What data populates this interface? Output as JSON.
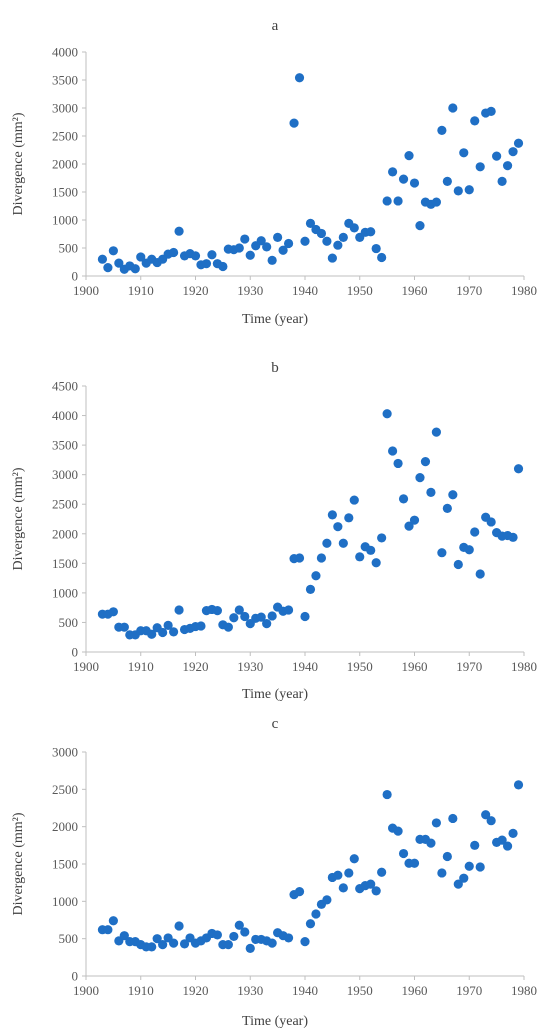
{
  "chart_data": [
    {
      "type": "scatter",
      "title": "a",
      "xlabel": "Time (year)",
      "ylabel": "Divergence (mm²)",
      "xlim": [
        1900,
        1980
      ],
      "ylim": [
        0,
        4000
      ],
      "xticks": [
        1900,
        1910,
        1920,
        1930,
        1940,
        1950,
        1960,
        1970,
        1980
      ],
      "yticks": [
        0,
        500,
        1000,
        1500,
        2000,
        2500,
        3000,
        3500,
        4000
      ],
      "grid": false,
      "legend": "none",
      "color": "#1f6fc5",
      "x": [
        1903,
        1904,
        1905,
        1906,
        1907,
        1908,
        1909,
        1910,
        1911,
        1912,
        1913,
        1914,
        1915,
        1916,
        1917,
        1918,
        1919,
        1920,
        1921,
        1922,
        1923,
        1924,
        1925,
        1926,
        1927,
        1928,
        1929,
        1930,
        1931,
        1932,
        1933,
        1934,
        1935,
        1936,
        1937,
        1938,
        1939,
        1940,
        1941,
        1942,
        1943,
        1944,
        1945,
        1946,
        1947,
        1948,
        1949,
        1950,
        1951,
        1952,
        1953,
        1954,
        1955,
        1956,
        1957,
        1958,
        1959,
        1960,
        1961,
        1962,
        1963,
        1964,
        1965,
        1966,
        1967,
        1968,
        1969,
        1970,
        1971,
        1972,
        1973,
        1974,
        1975,
        1976,
        1977,
        1978,
        1979
      ],
      "y": [
        300,
        150,
        450,
        230,
        120,
        180,
        130,
        340,
        230,
        300,
        240,
        300,
        390,
        420,
        800,
        360,
        400,
        360,
        200,
        220,
        380,
        220,
        170,
        480,
        470,
        500,
        660,
        370,
        540,
        630,
        520,
        280,
        690,
        460,
        580,
        2730,
        3540,
        620,
        940,
        830,
        760,
        620,
        320,
        550,
        690,
        940,
        860,
        690,
        780,
        790,
        490,
        330,
        1340,
        1860,
        1340,
        1730,
        2150,
        1660,
        900,
        1320,
        1280,
        1320,
        2600,
        1690,
        3000,
        1520,
        2200,
        1540,
        2770,
        1950,
        2910,
        2940,
        2140,
        1690,
        1970,
        2220,
        2370
      ]
    },
    {
      "type": "scatter",
      "title": "b",
      "xlabel": "Time (year)",
      "ylabel": "Divergence (mm²)",
      "xlim": [
        1900,
        1980
      ],
      "ylim": [
        0,
        4500
      ],
      "xticks": [
        1900,
        1910,
        1920,
        1930,
        1940,
        1950,
        1960,
        1970,
        1980
      ],
      "yticks": [
        0,
        500,
        1000,
        1500,
        2000,
        2500,
        3000,
        3500,
        4000,
        4500
      ],
      "grid": false,
      "legend": "none",
      "color": "#1f6fc5",
      "x": [
        1903,
        1904,
        1905,
        1906,
        1907,
        1908,
        1909,
        1910,
        1911,
        1912,
        1913,
        1914,
        1915,
        1916,
        1917,
        1918,
        1919,
        1920,
        1921,
        1922,
        1923,
        1924,
        1925,
        1926,
        1927,
        1928,
        1929,
        1930,
        1931,
        1932,
        1933,
        1934,
        1935,
        1936,
        1937,
        1938,
        1939,
        1940,
        1941,
        1942,
        1943,
        1944,
        1945,
        1946,
        1947,
        1948,
        1949,
        1950,
        1951,
        1952,
        1953,
        1954,
        1955,
        1956,
        1957,
        1958,
        1959,
        1960,
        1961,
        1962,
        1963,
        1964,
        1965,
        1966,
        1967,
        1968,
        1969,
        1970,
        1971,
        1972,
        1973,
        1974,
        1975,
        1976,
        1977,
        1978,
        1979
      ],
      "y": [
        640,
        640,
        680,
        420,
        420,
        290,
        290,
        360,
        360,
        300,
        410,
        330,
        450,
        340,
        710,
        380,
        400,
        430,
        440,
        700,
        720,
        700,
        460,
        420,
        580,
        710,
        600,
        480,
        570,
        590,
        480,
        610,
        760,
        690,
        710,
        1580,
        1590,
        600,
        1060,
        1290,
        1590,
        1840,
        2320,
        2120,
        1840,
        2270,
        2570,
        1610,
        1780,
        1720,
        1510,
        1930,
        4030,
        3400,
        3190,
        2590,
        2130,
        2230,
        2950,
        3220,
        2700,
        3720,
        1680,
        2430,
        2660,
        1480,
        1770,
        1730,
        2030,
        1320,
        2280,
        2200,
        2020,
        1960,
        1970,
        1940,
        3100
      ]
    },
    {
      "type": "scatter",
      "title": "c",
      "xlabel": "Time (year)",
      "ylabel": "Divergence (mm²)",
      "xlim": [
        1900,
        1980
      ],
      "ylim": [
        0,
        3000
      ],
      "xticks": [
        1900,
        1910,
        1920,
        1930,
        1940,
        1950,
        1960,
        1970,
        1980
      ],
      "yticks": [
        0,
        500,
        1000,
        1500,
        2000,
        2500,
        3000
      ],
      "grid": false,
      "legend": "none",
      "color": "#1f6fc5",
      "x": [
        1903,
        1904,
        1905,
        1906,
        1907,
        1908,
        1909,
        1910,
        1911,
        1912,
        1913,
        1914,
        1915,
        1916,
        1917,
        1918,
        1919,
        1920,
        1921,
        1922,
        1923,
        1924,
        1925,
        1926,
        1927,
        1928,
        1929,
        1930,
        1931,
        1932,
        1933,
        1934,
        1935,
        1936,
        1937,
        1938,
        1939,
        1940,
        1941,
        1942,
        1943,
        1944,
        1945,
        1946,
        1947,
        1948,
        1949,
        1950,
        1951,
        1952,
        1953,
        1954,
        1955,
        1956,
        1957,
        1958,
        1959,
        1960,
        1961,
        1962,
        1963,
        1964,
        1965,
        1966,
        1967,
        1968,
        1969,
        1970,
        1971,
        1972,
        1973,
        1974,
        1975,
        1976,
        1977,
        1978,
        1979
      ],
      "y": [
        620,
        620,
        740,
        470,
        540,
        460,
        460,
        420,
        390,
        390,
        500,
        420,
        510,
        440,
        670,
        430,
        510,
        440,
        470,
        510,
        570,
        550,
        420,
        420,
        530,
        680,
        590,
        370,
        490,
        490,
        470,
        440,
        580,
        540,
        510,
        1090,
        1130,
        460,
        700,
        830,
        960,
        1020,
        1320,
        1350,
        1180,
        1380,
        1570,
        1170,
        1210,
        1230,
        1140,
        1390,
        2430,
        1980,
        1940,
        1640,
        1510,
        1510,
        1830,
        1830,
        1780,
        2050,
        1380,
        1600,
        2110,
        1230,
        1310,
        1470,
        1750,
        1460,
        2160,
        2080,
        1790,
        1820,
        1740,
        1910,
        2560
      ]
    }
  ]
}
